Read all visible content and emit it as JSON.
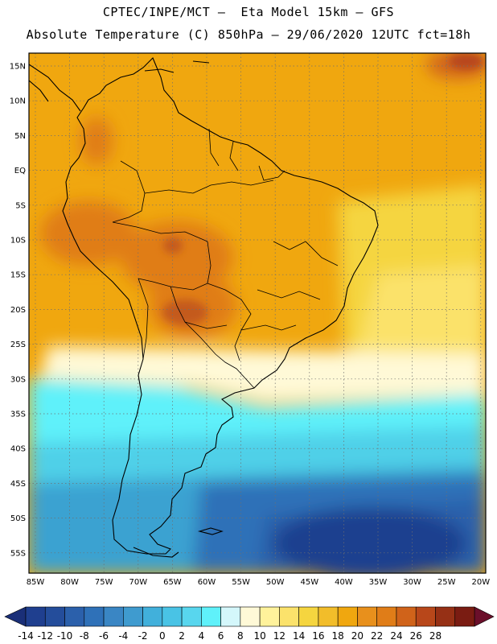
{
  "header": {
    "line1": "CPTEC/INPE/MCT –  Eta Model 15km – GFS",
    "line2": "Absolute Temperature (C) 850hPa – 29/06/2020 12UTC fct=18h"
  },
  "map": {
    "lat_labels": [
      "15N",
      "10N",
      "5N",
      "EQ",
      "5S",
      "10S",
      "15S",
      "20S",
      "25S",
      "30S",
      "35S",
      "40S",
      "45S",
      "50S",
      "55S"
    ],
    "lon_labels": [
      "85W",
      "80W",
      "75W",
      "70W",
      "65W",
      "60W",
      "55W",
      "50W",
      "45W",
      "40W",
      "35W",
      "30W",
      "25W",
      "20W"
    ],
    "region": "South America",
    "field_colors": {
      "warm_orange": "#f0a70f",
      "hot_orange": "#e07d18",
      "hot_red": "#c45a1a",
      "yellow": "#f5d53f",
      "cream": "#fff9d7",
      "cyan": "#5ff1fa",
      "light_blue": "#4fd0e8",
      "mid_blue": "#3aa2d1",
      "deep_blue": "#2b68b2",
      "navy": "#1f3f8f"
    }
  },
  "colorbar": {
    "labels": [
      "-14",
      "-12",
      "-10",
      "-8",
      "-6",
      "-4",
      "-2",
      "0",
      "2",
      "4",
      "6",
      "8",
      "10",
      "12",
      "14",
      "16",
      "18",
      "20",
      "22",
      "24",
      "26",
      "28"
    ],
    "colors": [
      "#1f3f8f",
      "#244d9b",
      "#2b60ab",
      "#2f71b8",
      "#3a86c4",
      "#3f9bcf",
      "#41b0db",
      "#49c3e5",
      "#58d6ee",
      "#5ff1fa",
      "#d4f7fb",
      "#fff9d7",
      "#fff29b",
      "#fbe26b",
      "#f5d53f",
      "#f2bd2a",
      "#f0a70f",
      "#e8901c",
      "#e07d18",
      "#d0631a",
      "#b8471a",
      "#963015",
      "#7a1c12"
    ],
    "min_arrow_color": "#1a2f78",
    "max_arrow_color": "#6b0f2a"
  }
}
